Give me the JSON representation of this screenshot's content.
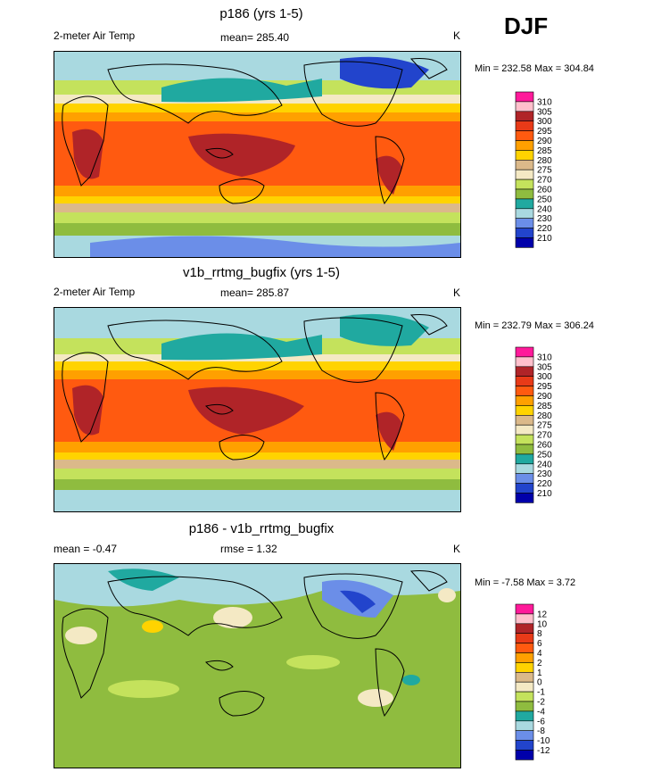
{
  "season": "DJF",
  "panels": [
    {
      "title": "p186 (yrs 1-5)",
      "left_label": "2-meter Air Temp",
      "mean_text": "mean= 285.40",
      "unit": "K",
      "minmax": "Min = 232.58 Max = 304.84"
    },
    {
      "title": "v1b_rrtmg_bugfix (yrs 1-5)",
      "left_label": "2-meter Air Temp",
      "mean_text": "mean= 285.87",
      "unit": "K",
      "minmax": "Min = 232.79 Max = 306.24"
    },
    {
      "title": "p186 - v1b_rrtmg_bugfix",
      "left_label": "mean =  -0.47",
      "mean_text": "rmse =   1.32",
      "unit": "K",
      "minmax": "Min =  -7.58 Max =   3.72"
    }
  ],
  "colors": {
    "abs_scale": [
      "#8866cc",
      "#0000aa",
      "#2244cc",
      "#6b8ee8",
      "#a9d9e0",
      "#20a9a0",
      "#8fbc3f",
      "#c4e25c",
      "#f4e9c4",
      "#dbb98a",
      "#ffd300",
      "#ffa000",
      "#ff5a10",
      "#e83a18",
      "#b02428",
      "#ffc0cc",
      "#ff1a9a"
    ],
    "diff_scale": [
      "#8866cc",
      "#0000aa",
      "#2244cc",
      "#6b8ee8",
      "#a9d9e0",
      "#20a9a0",
      "#8fbc3f",
      "#c4e25c",
      "#f4e9c4",
      "#dbb98a",
      "#ffd300",
      "#ffa000",
      "#ff5a10",
      "#e83a18",
      "#b02428",
      "#ffc0cc",
      "#ff1a9a"
    ]
  },
  "chart_data": [
    {
      "type": "heatmap",
      "title": "p186 (yrs 1-5)",
      "variable": "2-meter Air Temp",
      "units": "K",
      "mean": 285.4,
      "min": 232.58,
      "max": 304.84,
      "contour_levels": [
        210,
        220,
        230,
        240,
        250,
        260,
        270,
        275,
        280,
        285,
        290,
        295,
        300,
        305,
        310
      ]
    },
    {
      "type": "heatmap",
      "title": "v1b_rrtmg_bugfix (yrs 1-5)",
      "variable": "2-meter Air Temp",
      "units": "K",
      "mean": 285.87,
      "min": 232.79,
      "max": 306.24,
      "contour_levels": [
        210,
        220,
        230,
        240,
        250,
        260,
        270,
        275,
        280,
        285,
        290,
        295,
        300,
        305,
        310
      ]
    },
    {
      "type": "heatmap",
      "title": "p186 - v1b_rrtmg_bugfix",
      "units": "K",
      "mean": -0.47,
      "rmse": 1.32,
      "min": -7.58,
      "max": 3.72,
      "contour_levels": [
        -12,
        -10,
        -8,
        -6,
        -4,
        -2,
        -1,
        0,
        1,
        2,
        4,
        6,
        8,
        10,
        12
      ]
    }
  ]
}
